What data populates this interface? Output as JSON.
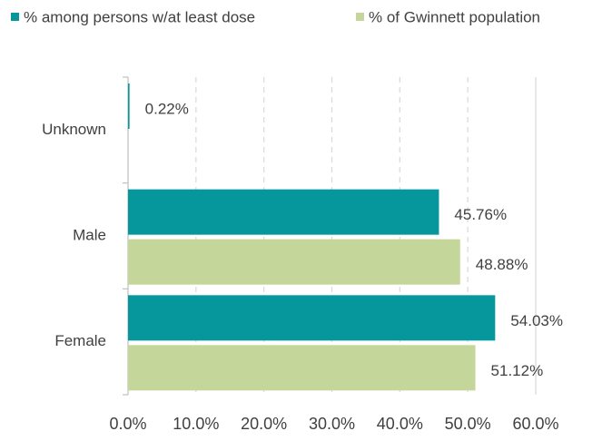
{
  "chart_data": {
    "type": "barh",
    "categories": [
      "Unknown",
      "Male",
      "Female"
    ],
    "series": [
      {
        "name": "% among persons w/at least dose",
        "color": "#06979d",
        "values": [
          0.22,
          45.76,
          54.03
        ],
        "value_labels": [
          "0.22%",
          "45.76%",
          "54.03%"
        ]
      },
      {
        "name": "% of Gwinnett population",
        "color": "#c5d69b",
        "values": [
          null,
          48.88,
          51.12
        ],
        "value_labels": [
          null,
          "48.88%",
          "51.12%"
        ]
      }
    ],
    "xlim": [
      0,
      60
    ],
    "xticks": [
      {
        "value": 0,
        "label": "0.0%"
      },
      {
        "value": 10,
        "label": "10.0%"
      },
      {
        "value": 20,
        "label": "20.0%"
      },
      {
        "value": 30,
        "label": "30.0%"
      },
      {
        "value": 40,
        "label": "40.0%"
      },
      {
        "value": 50,
        "label": "50.0%"
      },
      {
        "value": 60,
        "label": "60.0%"
      }
    ],
    "grid": true,
    "legend": "top"
  }
}
